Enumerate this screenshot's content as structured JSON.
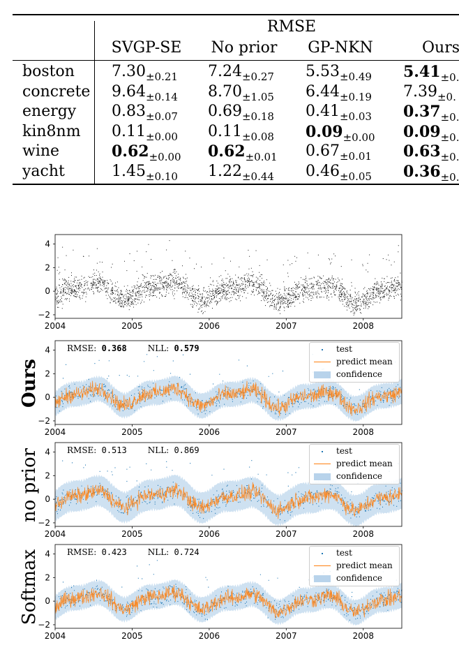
{
  "table": {
    "group_header": "RMSE",
    "columns": [
      "SVGP-SE",
      "No prior",
      "GP-NKN",
      "Ours"
    ],
    "rows": [
      {
        "dataset": "boston",
        "cells": [
          {
            "m": "7.30",
            "s": "±0.21",
            "b": false
          },
          {
            "m": "7.24",
            "s": "±0.27",
            "b": false
          },
          {
            "m": "5.53",
            "s": "±0.49",
            "b": false
          },
          {
            "m": "5.41",
            "s": "±0.",
            "b": true
          }
        ]
      },
      {
        "dataset": "concrete",
        "cells": [
          {
            "m": "9.64",
            "s": "±0.14",
            "b": false
          },
          {
            "m": "8.70",
            "s": "±1.05",
            "b": false
          },
          {
            "m": "6.44",
            "s": "±0.19",
            "b": false
          },
          {
            "m": "7.39",
            "s": "±0.",
            "b": false
          }
        ]
      },
      {
        "dataset": "energy",
        "cells": [
          {
            "m": "0.83",
            "s": "±0.07",
            "b": false
          },
          {
            "m": "0.69",
            "s": "±0.18",
            "b": false
          },
          {
            "m": "0.41",
            "s": "±0.03",
            "b": false
          },
          {
            "m": "0.37",
            "s": "±0.",
            "b": true
          }
        ]
      },
      {
        "dataset": "kin8nm",
        "cells": [
          {
            "m": "0.11",
            "s": "±0.00",
            "b": false
          },
          {
            "m": "0.11",
            "s": "±0.08",
            "b": false
          },
          {
            "m": "0.09",
            "s": "±0.00",
            "b": true
          },
          {
            "m": "0.09",
            "s": "±0.",
            "b": true
          }
        ]
      },
      {
        "dataset": "wine",
        "cells": [
          {
            "m": "0.62",
            "s": "±0.00",
            "b": true
          },
          {
            "m": "0.62",
            "s": "±0.01",
            "b": true
          },
          {
            "m": "0.67",
            "s": "±0.01",
            "b": false
          },
          {
            "m": "0.63",
            "s": "±0.",
            "b": true
          }
        ]
      },
      {
        "dataset": "yacht",
        "cells": [
          {
            "m": "1.45",
            "s": "±0.10",
            "b": false
          },
          {
            "m": "1.22",
            "s": "±0.44",
            "b": false
          },
          {
            "m": "0.46",
            "s": "±0.05",
            "b": false
          },
          {
            "m": "0.36",
            "s": "±0.",
            "b": true
          }
        ]
      }
    ]
  },
  "chart_data": [
    {
      "type": "scatter",
      "title": "",
      "x_ticks": [
        "2004",
        "2005",
        "2006",
        "2007",
        "2008"
      ],
      "y_ticks": [
        "−2",
        "0",
        "2",
        "4"
      ],
      "ylim": [
        -2.3,
        4.8
      ],
      "xlim": [
        2004,
        2008.5
      ],
      "series": [
        {
          "color": "#000000"
        }
      ]
    },
    {
      "type": "scatter",
      "ylabel": "Ours",
      "rmse_label": "RMSE:",
      "rmse_value": "0.368",
      "nll_label": "NLL:",
      "nll_value": "0.579",
      "bold_metrics": true,
      "legend": [
        "test",
        "predict mean",
        "confidence"
      ],
      "x_ticks": [
        "2004",
        "2005",
        "2006",
        "2007",
        "2008"
      ],
      "y_ticks": [
        "−2",
        "0",
        "2",
        "4"
      ],
      "ylim": [
        -2.3,
        4.8
      ],
      "xlim": [
        2004,
        2008.5
      ],
      "colors": {
        "test": "#1f77b4",
        "mean": "#ff7f0e",
        "confidence": "#a6c8e6"
      }
    },
    {
      "type": "scatter",
      "ylabel": "no prior",
      "rmse_label": "RMSE:",
      "rmse_value": "0.513",
      "nll_label": "NLL:",
      "nll_value": "0.869",
      "bold_metrics": false,
      "legend": [
        "test",
        "predict mean",
        "confidence"
      ],
      "x_ticks": [
        "2004",
        "2005",
        "2006",
        "2007",
        "2008"
      ],
      "y_ticks": [
        "−2",
        "0",
        "2",
        "4"
      ],
      "ylim": [
        -2.3,
        4.8
      ],
      "xlim": [
        2004,
        2008.5
      ],
      "colors": {
        "test": "#1f77b4",
        "mean": "#ff7f0e",
        "confidence": "#a6c8e6"
      }
    },
    {
      "type": "scatter",
      "ylabel": "Softmax",
      "rmse_label": "RMSE:",
      "rmse_value": "0.423",
      "nll_label": "NLL:",
      "nll_value": "0.724",
      "bold_metrics": false,
      "legend": [
        "test",
        "predict mean",
        "confidence"
      ],
      "x_ticks": [
        "2004",
        "2005",
        "2006",
        "2007",
        "2008"
      ],
      "y_ticks": [
        "−2",
        "0",
        "2",
        "4"
      ],
      "ylim": [
        -2.3,
        4.8
      ],
      "xlim": [
        2004,
        2008.5
      ],
      "colors": {
        "test": "#1f77b4",
        "mean": "#ff7f0e",
        "confidence": "#a6c8e6"
      }
    }
  ]
}
